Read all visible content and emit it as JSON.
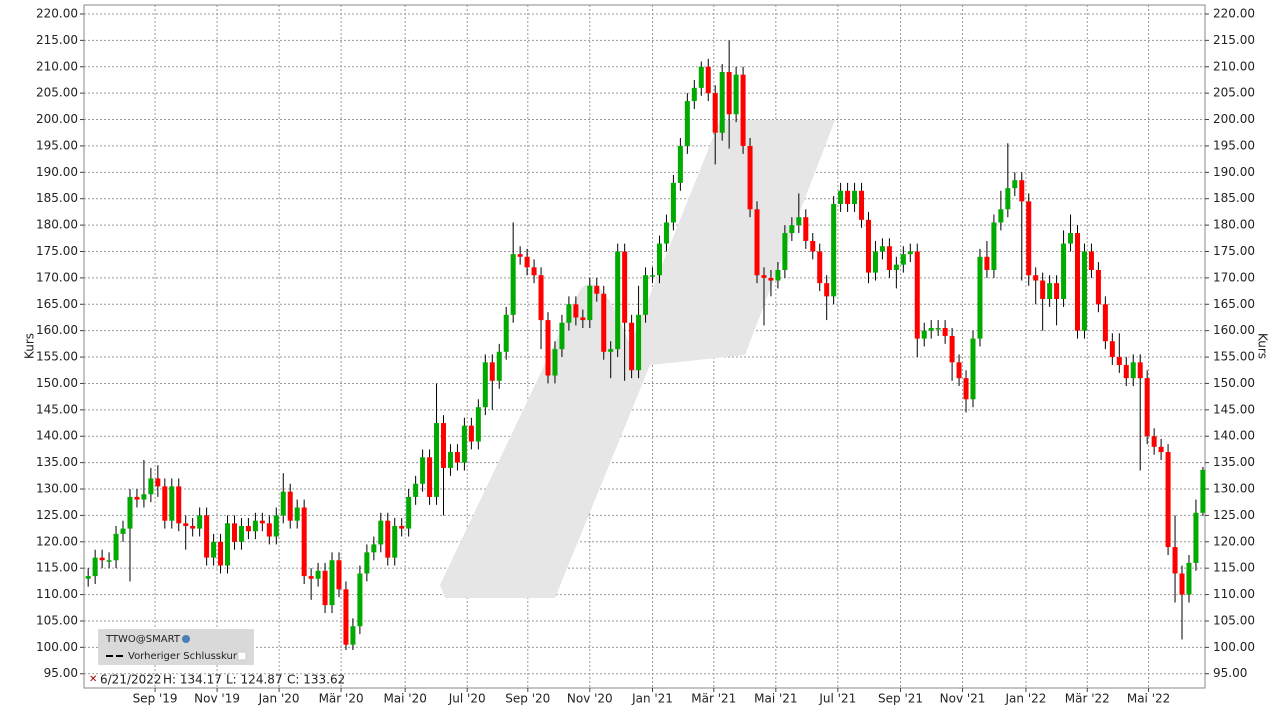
{
  "chart_data": {
    "type": "candlestick",
    "y_label": "Kurs",
    "up_color": "#00aa00",
    "down_color": "#ff0000",
    "grid": true,
    "legend": {
      "symbol": "TTWO@SMART",
      "series_name": "Vorheriger Schlusskurs"
    },
    "info": {
      "date": "6/21/2022",
      "high": "H: 134.17",
      "low": "L: 124.87",
      "close": "C: 133.62"
    },
    "ylim": [
      92.3,
      221.7
    ],
    "xlim": [
      -0.6,
      160.3
    ],
    "yticks": [
      {
        "value": 95,
        "label": "95.00"
      },
      {
        "value": 100,
        "label": "100.00"
      },
      {
        "value": 105,
        "label": "105.00"
      },
      {
        "value": 110,
        "label": "110.00"
      },
      {
        "value": 115,
        "label": "115.00"
      },
      {
        "value": 120,
        "label": "120.00"
      },
      {
        "value": 125,
        "label": "125.00"
      },
      {
        "value": 130,
        "label": "130.00"
      },
      {
        "value": 135,
        "label": "135.00"
      },
      {
        "value": 140,
        "label": "140.00"
      },
      {
        "value": 145,
        "label": "145.00"
      },
      {
        "value": 150,
        "label": "150.00"
      },
      {
        "value": 155,
        "label": "155.00"
      },
      {
        "value": 160,
        "label": "160.00"
      },
      {
        "value": 165,
        "label": "165.00"
      },
      {
        "value": 170,
        "label": "170.00"
      },
      {
        "value": 175,
        "label": "175.00"
      },
      {
        "value": 180,
        "label": "180.00"
      },
      {
        "value": 185,
        "label": "185.00"
      },
      {
        "value": 190,
        "label": "190.00"
      },
      {
        "value": 195,
        "label": "195.00"
      },
      {
        "value": 200,
        "label": "200.00"
      },
      {
        "value": 205,
        "label": "205.00"
      },
      {
        "value": 210,
        "label": "210.00"
      },
      {
        "value": 215,
        "label": "215.00"
      },
      {
        "value": 220,
        "label": "220.00"
      }
    ],
    "xticks": [
      {
        "value": 9.6,
        "label": "Sep '19"
      },
      {
        "value": 18.5,
        "label": "Nov '19"
      },
      {
        "value": 27.4,
        "label": "Jan '20"
      },
      {
        "value": 36.3,
        "label": "Mär '20"
      },
      {
        "value": 45.5,
        "label": "Mai '20"
      },
      {
        "value": 54.4,
        "label": "Jul '20"
      },
      {
        "value": 63.1,
        "label": "Sep '20"
      },
      {
        "value": 72,
        "label": "Nov '20"
      },
      {
        "value": 81,
        "label": "Jan '21"
      },
      {
        "value": 89.8,
        "label": "Mär '21"
      },
      {
        "value": 98.7,
        "label": "Mai '21"
      },
      {
        "value": 107.6,
        "label": "Jul '21"
      },
      {
        "value": 116.6,
        "label": "Sep '21"
      },
      {
        "value": 125.5,
        "label": "Nov '21"
      },
      {
        "value": 134.6,
        "label": "Jan '22"
      },
      {
        "value": 143.4,
        "label": "Mär '22"
      },
      {
        "value": 152.2,
        "label": "Mai '22"
      }
    ],
    "categories": [
      null,
      null,
      null,
      null,
      null,
      null,
      null,
      null,
      null,
      null,
      null,
      null,
      null,
      null,
      null,
      null,
      null,
      null,
      null,
      null,
      null,
      null,
      null,
      null,
      null,
      null,
      null,
      null,
      null,
      null,
      null,
      null,
      null,
      null,
      null,
      null,
      null,
      null,
      null,
      null,
      null,
      null,
      null,
      null,
      null,
      null,
      null,
      null,
      null,
      null,
      null,
      null,
      null,
      null,
      null,
      null,
      null,
      null,
      null,
      null,
      null,
      null,
      null,
      null,
      null,
      null,
      null,
      null,
      null,
      null,
      null,
      null,
      null,
      null,
      null,
      null,
      null,
      null,
      null,
      null,
      null,
      null,
      null,
      null,
      null,
      null,
      null,
      null,
      null,
      null,
      null,
      null,
      null,
      null,
      null,
      null,
      null,
      null,
      null,
      null,
      null,
      null,
      null,
      null,
      null,
      null,
      null,
      null,
      null,
      null,
      null,
      null,
      null,
      null,
      null,
      null,
      null,
      null,
      null,
      null,
      null,
      null,
      null,
      null,
      null,
      null,
      null,
      null,
      null,
      null,
      null,
      null,
      null,
      null,
      null,
      null,
      null,
      null,
      null,
      null,
      null,
      null,
      null,
      null,
      null,
      null,
      null,
      null,
      null,
      null,
      null,
      null,
      null,
      null,
      null,
      null,
      null,
      null,
      null,
      null,
      null
    ],
    "open": [
      113,
      113.5,
      117,
      116.5,
      116.5,
      121.5,
      122.5,
      128.5,
      128,
      129,
      132,
      130.5,
      124,
      130.5,
      123.5,
      123,
      122.5,
      125,
      117,
      120,
      115.5,
      123.5,
      120,
      123,
      122,
      124,
      123.5,
      121,
      125,
      129.5,
      124,
      126.5,
      113.5,
      113,
      114.5,
      108,
      116.5,
      111,
      100.5,
      104,
      114,
      118,
      119.5,
      124,
      117,
      123,
      122.5,
      128.5,
      131,
      136,
      128.5,
      142.5,
      134,
      137,
      135,
      142,
      139,
      145.5,
      154,
      150.5,
      156,
      163,
      174.5,
      174,
      172,
      170.5,
      162,
      151.5,
      156.5,
      161.5,
      165,
      162.5,
      162,
      168.5,
      167,
      156,
      156.5,
      175,
      161.5,
      152.5,
      163,
      170.5,
      170.5,
      176.5,
      180.5,
      188,
      195,
      203.5,
      206,
      210,
      205,
      197.5,
      209,
      201,
      208.5,
      195,
      183,
      170.5,
      170,
      169.5,
      171.5,
      178.5,
      180,
      181.5,
      177,
      175,
      169,
      166.5,
      184,
      186.5,
      184,
      186.5,
      181,
      171,
      175,
      176,
      171.5,
      172.5,
      174.5,
      175,
      158.5,
      160,
      160.5,
      160.5,
      159,
      154,
      151,
      147,
      158.5,
      174,
      171.5,
      180.5,
      183,
      187,
      188.5,
      184.5,
      170.5,
      169.5,
      166,
      169,
      166,
      176.5,
      178.5,
      160,
      175,
      171.5,
      165,
      158,
      155,
      153.5,
      151,
      154,
      151,
      140,
      138,
      137,
      119,
      114,
      110,
      116,
      125.5
    ],
    "high": [
      115,
      118.5,
      118.5,
      118,
      123,
      124,
      130,
      130,
      135.5,
      134,
      134.5,
      132,
      132,
      132,
      125,
      124.5,
      126.5,
      126.5,
      121.5,
      121.5,
      125,
      125,
      124.5,
      124.5,
      125.5,
      125.5,
      125,
      126.5,
      133,
      131,
      128,
      128,
      115,
      116,
      116,
      118,
      118,
      112.5,
      105.5,
      115.5,
      119.5,
      121,
      125.5,
      125.5,
      124.5,
      124.5,
      130,
      132.5,
      137.5,
      137.5,
      150,
      144,
      138.5,
      138.5,
      143.5,
      143.5,
      147,
      155.5,
      155.5,
      157.5,
      164.5,
      180.5,
      176,
      175.5,
      173.5,
      172,
      163.5,
      158,
      163,
      166.5,
      166.5,
      164,
      170,
      170,
      168.5,
      158,
      176.5,
      176.5,
      163,
      168.5,
      172,
      172,
      178,
      182,
      189.5,
      196.5,
      205,
      207.5,
      211,
      211.5,
      206.5,
      210.5,
      215,
      210,
      210,
      196.5,
      184.5,
      172,
      171.5,
      173,
      180,
      181.5,
      186,
      183,
      178.5,
      176.5,
      170.5,
      185.5,
      188,
      188,
      188,
      188,
      182.5,
      177,
      177.5,
      177.5,
      174,
      176,
      176.5,
      176.5,
      161.5,
      162,
      162,
      162,
      160.5,
      155.5,
      152.5,
      160,
      175.5,
      177,
      182,
      186.5,
      195.5,
      190,
      190,
      186,
      172,
      171,
      170.5,
      170.5,
      179,
      182,
      180,
      176.5,
      176.5,
      173,
      166.5,
      159.5,
      159.5,
      155,
      155.5,
      155.5,
      152.5,
      141.5,
      139.5,
      138.5,
      125,
      115.5,
      117.5,
      128,
      134.17
    ],
    "low": [
      111.5,
      112,
      115,
      115,
      115,
      120,
      112.5,
      126.5,
      126.5,
      127.5,
      128.5,
      122.5,
      122.5,
      122,
      118.5,
      121,
      121,
      115.5,
      115.5,
      114,
      114,
      118.5,
      118.5,
      120.5,
      120.5,
      122,
      119.5,
      119.5,
      123.5,
      122.5,
      122.5,
      112,
      109,
      111.5,
      106.5,
      106.5,
      109.5,
      99.5,
      99.5,
      102.5,
      112.5,
      116.5,
      118,
      115.5,
      115.5,
      121,
      121,
      127,
      129.5,
      127,
      127,
      125,
      132.5,
      133.5,
      133.5,
      137.5,
      137.5,
      144,
      145,
      149,
      154.5,
      161.5,
      172.5,
      170.5,
      169,
      156.5,
      150,
      150,
      155,
      160,
      161,
      160.5,
      160.5,
      165.5,
      154.5,
      151,
      155,
      150.5,
      151,
      151,
      161.5,
      169,
      169,
      175,
      179,
      186.5,
      193.5,
      202,
      204.5,
      203.5,
      191.5,
      196,
      194.5,
      199.5,
      193.5,
      181.5,
      169,
      161,
      166.5,
      168,
      170,
      177,
      178.5,
      175.5,
      173.5,
      167.5,
      162,
      165,
      182.5,
      182.5,
      182.5,
      179.5,
      169,
      169.5,
      173.5,
      170,
      168,
      171,
      173,
      155,
      157,
      158.5,
      159,
      157.5,
      150.5,
      149.5,
      144.5,
      145.5,
      157,
      170,
      170,
      179,
      181.5,
      185.5,
      169.5,
      168.5,
      165,
      160,
      164.5,
      161,
      164.5,
      175,
      158.5,
      158.5,
      170,
      163.5,
      156.5,
      153.5,
      152,
      149.5,
      149.5,
      133.5,
      138.5,
      136.5,
      135.5,
      117.5,
      108.5,
      101.5,
      108.5,
      114.5,
      124.87
    ],
    "close": [
      113.5,
      117,
      116.5,
      116.5,
      121.5,
      122.5,
      128.5,
      128,
      129,
      132,
      130.5,
      124,
      130.5,
      123.5,
      123,
      122.5,
      125,
      117,
      120,
      115.5,
      123.5,
      120,
      123,
      122,
      124,
      123.5,
      121,
      125,
      129.5,
      124,
      126.5,
      113.5,
      113,
      114.5,
      108,
      116.5,
      111,
      100.5,
      104,
      114,
      118,
      119.5,
      124,
      117,
      123,
      122.5,
      128.5,
      131,
      136,
      128.5,
      142.5,
      134,
      137,
      135,
      142,
      139,
      145.5,
      154,
      150.5,
      156,
      163,
      174.5,
      174,
      172,
      170.5,
      162,
      151.5,
      156.5,
      161.5,
      165,
      162.5,
      162,
      168.5,
      167,
      156,
      156.5,
      175,
      161.5,
      152.5,
      163,
      170.5,
      170.5,
      176.5,
      180.5,
      188,
      195,
      203.5,
      206,
      210,
      205,
      197.5,
      209,
      201,
      208.5,
      195,
      183,
      170.5,
      170,
      169.5,
      171.5,
      178.5,
      180,
      181.5,
      177,
      175,
      169,
      166.5,
      184,
      186.5,
      184,
      186.5,
      181,
      171,
      175,
      176,
      171.5,
      172.5,
      174.5,
      175,
      158.5,
      160,
      160.5,
      160.5,
      159,
      154,
      151,
      147,
      158.5,
      174,
      171.5,
      180.5,
      183,
      187,
      188.5,
      184.5,
      170.5,
      169.5,
      166,
      169,
      166,
      176.5,
      178.5,
      160,
      175,
      171.5,
      165,
      158,
      155,
      153.5,
      151,
      154,
      151,
      140,
      138,
      137,
      119,
      114,
      110,
      116,
      125.5,
      133.62
    ]
  }
}
